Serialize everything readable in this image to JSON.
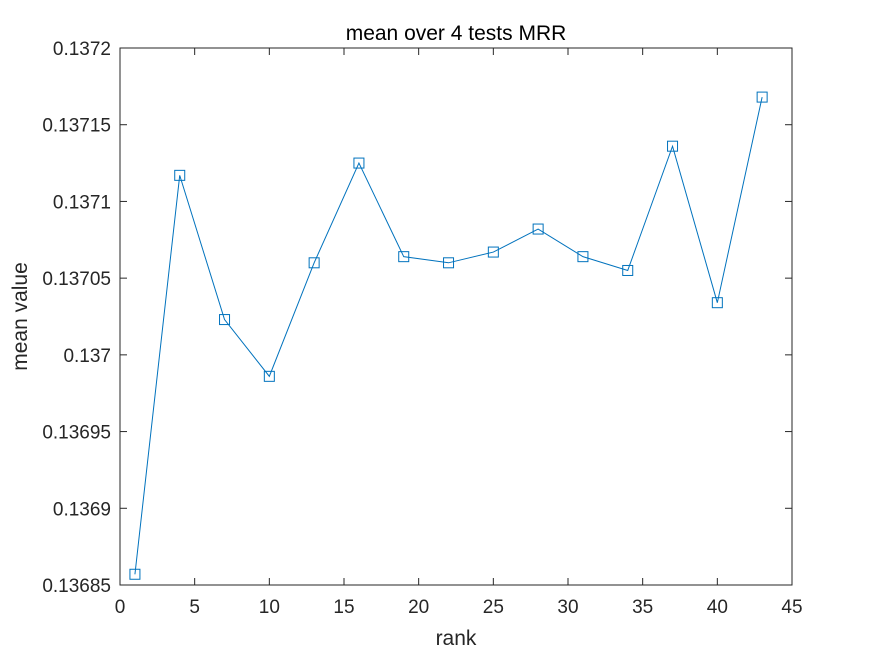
{
  "chart_data": {
    "type": "line",
    "title": "mean over 4 tests MRR",
    "xlabel": "rank",
    "ylabel": "mean value",
    "xlim": [
      0,
      45
    ],
    "ylim": [
      0.13685,
      0.1372
    ],
    "xticks": [
      0,
      5,
      10,
      15,
      20,
      25,
      30,
      35,
      40,
      45
    ],
    "xtick_labels": [
      "0",
      "5",
      "10",
      "15",
      "20",
      "25",
      "30",
      "35",
      "40",
      "45"
    ],
    "yticks": [
      0.13685,
      0.1369,
      0.13695,
      0.137,
      0.13705,
      0.1371,
      0.13715,
      0.1372
    ],
    "ytick_labels": [
      "0.13685",
      "0.1369",
      "0.13695",
      "0.137",
      "0.13705",
      "0.1371",
      "0.13715",
      "0.1372"
    ],
    "grid": false,
    "marker": "square",
    "series": [
      {
        "color": "#0072BD",
        "x": [
          1,
          4,
          7,
          10,
          13,
          16,
          19,
          22,
          25,
          28,
          31,
          34,
          37,
          40,
          43
        ],
        "y": [
          0.136857,
          0.137117,
          0.137023,
          0.136986,
          0.13706,
          0.137125,
          0.137064,
          0.13706,
          0.137067,
          0.137082,
          0.137064,
          0.137055,
          0.137136,
          0.137034,
          0.137168
        ]
      }
    ]
  }
}
